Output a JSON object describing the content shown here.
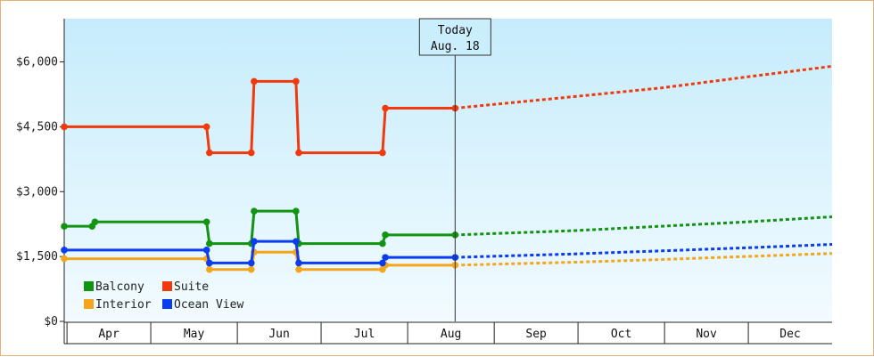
{
  "chart_data": {
    "type": "line",
    "title": "",
    "xlabel": "",
    "ylabel": "",
    "ylim": [
      0,
      7000
    ],
    "y_ticks": [
      {
        "value": 0,
        "label": "$0"
      },
      {
        "value": 1500,
        "label": "$1,500"
      },
      {
        "value": 3000,
        "label": "$3,000"
      },
      {
        "value": 4500,
        "label": "$4,500"
      },
      {
        "value": 6000,
        "label": "$6,000"
      }
    ],
    "x_range": [
      "2023-03-31",
      "2023-12-31"
    ],
    "months": [
      {
        "label": "Apr",
        "start": "2023-04-01",
        "end": "2023-05-01"
      },
      {
        "label": "May",
        "start": "2023-05-01",
        "end": "2023-06-01"
      },
      {
        "label": "Jun",
        "start": "2023-06-01",
        "end": "2023-07-01"
      },
      {
        "label": "Jul",
        "start": "2023-07-01",
        "end": "2023-08-01"
      },
      {
        "label": "Aug",
        "start": "2023-08-01",
        "end": "2023-09-01"
      },
      {
        "label": "Sep",
        "start": "2023-09-01",
        "end": "2023-10-01"
      },
      {
        "label": "Oct",
        "start": "2023-10-01",
        "end": "2023-11-01"
      },
      {
        "label": "Nov",
        "start": "2023-11-01",
        "end": "2023-12-01"
      },
      {
        "label": "Dec",
        "start": "2023-12-01",
        "end": "2024-01-01"
      }
    ],
    "today": {
      "date": "2023-08-18",
      "line1": "Today",
      "line2": "Aug. 18"
    },
    "legend_position": "bottom-left",
    "grid": false,
    "series": [
      {
        "name": "Balcony",
        "color": "#129412",
        "points": [
          [
            "2023-03-31",
            2200
          ],
          [
            "2023-04-10",
            2200
          ],
          [
            "2023-04-11",
            2300
          ],
          [
            "2023-05-21",
            2300
          ],
          [
            "2023-05-22",
            1800
          ],
          [
            "2023-06-06",
            1800
          ],
          [
            "2023-06-07",
            2550
          ],
          [
            "2023-06-22",
            2550
          ],
          [
            "2023-06-23",
            1800
          ],
          [
            "2023-07-23",
            1800
          ],
          [
            "2023-07-24",
            2000
          ],
          [
            "2023-08-18",
            2000
          ]
        ],
        "forecast": [
          [
            "2023-08-18",
            2000
          ],
          [
            "2023-09-30",
            2100
          ],
          [
            "2023-10-31",
            2200
          ],
          [
            "2023-11-30",
            2300
          ],
          [
            "2023-12-31",
            2420
          ]
        ]
      },
      {
        "name": "Suite",
        "color": "#f03a0e",
        "points": [
          [
            "2023-03-31",
            4500
          ],
          [
            "2023-05-21",
            4500
          ],
          [
            "2023-05-22",
            3900
          ],
          [
            "2023-06-06",
            3900
          ],
          [
            "2023-06-07",
            5550
          ],
          [
            "2023-06-22",
            5550
          ],
          [
            "2023-06-23",
            3900
          ],
          [
            "2023-07-23",
            3900
          ],
          [
            "2023-07-24",
            4930
          ],
          [
            "2023-08-18",
            4930
          ]
        ],
        "forecast": [
          [
            "2023-08-18",
            4930
          ],
          [
            "2023-09-30",
            5200
          ],
          [
            "2023-10-31",
            5400
          ],
          [
            "2023-11-30",
            5650
          ],
          [
            "2023-12-31",
            5900
          ]
        ]
      },
      {
        "name": "Interior",
        "color": "#f5a51b",
        "points": [
          [
            "2023-03-31",
            1450
          ],
          [
            "2023-05-21",
            1450
          ],
          [
            "2023-05-22",
            1200
          ],
          [
            "2023-06-06",
            1200
          ],
          [
            "2023-06-07",
            1600
          ],
          [
            "2023-06-22",
            1600
          ],
          [
            "2023-06-23",
            1200
          ],
          [
            "2023-07-23",
            1200
          ],
          [
            "2023-07-24",
            1300
          ],
          [
            "2023-08-18",
            1300
          ]
        ],
        "forecast": [
          [
            "2023-08-18",
            1300
          ],
          [
            "2023-09-30",
            1370
          ],
          [
            "2023-10-31",
            1430
          ],
          [
            "2023-11-30",
            1500
          ],
          [
            "2023-12-31",
            1570
          ]
        ]
      },
      {
        "name": "Ocean View",
        "color": "#0b3cf0",
        "points": [
          [
            "2023-03-31",
            1650
          ],
          [
            "2023-05-21",
            1650
          ],
          [
            "2023-05-22",
            1350
          ],
          [
            "2023-06-06",
            1350
          ],
          [
            "2023-06-07",
            1850
          ],
          [
            "2023-06-22",
            1850
          ],
          [
            "2023-06-23",
            1350
          ],
          [
            "2023-07-23",
            1350
          ],
          [
            "2023-07-24",
            1480
          ],
          [
            "2023-08-18",
            1480
          ]
        ],
        "forecast": [
          [
            "2023-08-18",
            1480
          ],
          [
            "2023-09-30",
            1560
          ],
          [
            "2023-10-31",
            1630
          ],
          [
            "2023-11-30",
            1700
          ],
          [
            "2023-12-31",
            1780
          ]
        ]
      }
    ]
  }
}
